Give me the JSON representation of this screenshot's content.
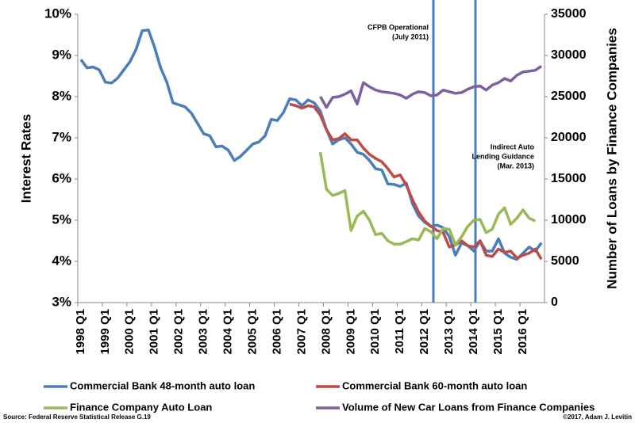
{
  "chart_data": {
    "type": "line",
    "y_label": "Interest Rates",
    "y2_label": "Number of Loans by Finance Companies",
    "categories": [
      "1998 Q1",
      null,
      null,
      null,
      "1999 Q1",
      null,
      null,
      null,
      "2000 Q1",
      null,
      null,
      null,
      "2001 Q1",
      null,
      null,
      null,
      "2002 Q1",
      null,
      null,
      null,
      "2003 Q1",
      null,
      null,
      null,
      "2004 Q1",
      null,
      null,
      null,
      "2005 Q1",
      null,
      null,
      null,
      "2006 Q1",
      null,
      null,
      null,
      "2007 Q1",
      null,
      null,
      null,
      "2008 Q1",
      null,
      null,
      null,
      "2009 Q1",
      null,
      null,
      null,
      "2010 Q1",
      null,
      null,
      null,
      "2011 Q1",
      null,
      null,
      null,
      "2012 Q1",
      null,
      null,
      null,
      "2013 Q1",
      null,
      null,
      null,
      "2014 Q1",
      null,
      null,
      null,
      "2015 Q1",
      null,
      null,
      null,
      "2016 Q1",
      null,
      null,
      null
    ],
    "series": [
      {
        "name": "Commercial Bank 48-month auto loan",
        "color": "#4a7ebb",
        "values": [
          8.9,
          8.7,
          8.72,
          8.65,
          8.35,
          8.33,
          8.45,
          8.65,
          8.85,
          9.15,
          9.6,
          9.62,
          9.2,
          8.7,
          8.35,
          7.85,
          7.8,
          7.75,
          7.6,
          7.35,
          7.1,
          7.05,
          6.78,
          6.8,
          6.7,
          6.45,
          6.55,
          6.7,
          6.85,
          6.9,
          7.05,
          7.45,
          7.42,
          7.62,
          7.95,
          7.92,
          7.78,
          7.92,
          7.85,
          7.65,
          7.2,
          6.85,
          6.95,
          7.0,
          6.85,
          6.65,
          6.6,
          6.45,
          6.25,
          6.22,
          5.88,
          5.87,
          5.82,
          5.9,
          5.4,
          5.1,
          4.95,
          4.85,
          4.88,
          4.82,
          4.6,
          4.15,
          4.45,
          4.38,
          4.25,
          4.5,
          4.25,
          4.25,
          4.55,
          4.2,
          4.1,
          4.05,
          4.2,
          4.35,
          4.25,
          4.45
        ]
      },
      {
        "name": "Commercial Bank 60-month auto loan",
        "color": "#be4b48",
        "values": [
          null,
          null,
          null,
          null,
          null,
          null,
          null,
          null,
          null,
          null,
          null,
          null,
          null,
          null,
          null,
          null,
          null,
          null,
          null,
          null,
          null,
          null,
          null,
          null,
          null,
          null,
          null,
          null,
          null,
          null,
          null,
          null,
          null,
          null,
          7.82,
          7.78,
          7.72,
          7.78,
          7.75,
          7.55,
          7.2,
          6.95,
          6.98,
          7.1,
          6.95,
          6.95,
          6.75,
          6.6,
          6.5,
          6.42,
          6.25,
          6.05,
          6.1,
          5.85,
          5.5,
          5.2,
          4.98,
          4.85,
          4.75,
          4.7,
          4.35,
          4.4,
          4.5,
          4.38,
          4.35,
          4.5,
          4.15,
          4.12,
          4.3,
          4.22,
          4.25,
          4.08,
          4.15,
          4.2,
          4.3,
          4.05
        ]
      },
      {
        "name": "Finance Company Auto Loan",
        "color": "#98b954",
        "values": [
          null,
          null,
          null,
          null,
          null,
          null,
          null,
          null,
          null,
          null,
          null,
          null,
          null,
          null,
          null,
          null,
          null,
          null,
          null,
          null,
          null,
          null,
          null,
          null,
          null,
          null,
          null,
          null,
          null,
          null,
          null,
          null,
          null,
          null,
          null,
          null,
          null,
          null,
          null,
          6.65,
          5.75,
          5.6,
          5.65,
          5.72,
          4.75,
          5.1,
          5.22,
          5.0,
          4.65,
          4.68,
          4.5,
          4.42,
          4.42,
          4.48,
          4.55,
          4.52,
          4.8,
          4.72,
          4.55,
          4.8,
          4.78,
          4.4,
          4.6,
          4.85,
          5.0,
          5.02,
          4.7,
          4.78,
          5.15,
          5.3,
          4.9,
          5.05,
          5.25,
          5.05,
          4.98,
          null
        ]
      },
      {
        "name": "Volume of New Car Loans from Finance Companies",
        "color": "#7d60a0",
        "axis": "y2",
        "values": [
          null,
          null,
          null,
          null,
          null,
          null,
          null,
          null,
          null,
          null,
          null,
          null,
          null,
          null,
          null,
          null,
          null,
          null,
          null,
          null,
          null,
          null,
          null,
          null,
          null,
          null,
          null,
          null,
          null,
          null,
          null,
          null,
          null,
          null,
          null,
          null,
          null,
          null,
          null,
          25000,
          23700,
          24900,
          25000,
          25300,
          25700,
          24100,
          26700,
          26200,
          25800,
          25600,
          25500,
          25400,
          25200,
          24800,
          25300,
          25600,
          25500,
          25100,
          25200,
          25800,
          25600,
          25400,
          25500,
          25900,
          26200,
          26300,
          25800,
          26400,
          26700,
          27200,
          26900,
          27600,
          28000,
          28100,
          28200,
          28700
        ]
      }
    ],
    "ylim": [
      3,
      10
    ],
    "yticks": [
      {
        "value": 3,
        "label": "3%"
      },
      {
        "value": 4,
        "label": "4%"
      },
      {
        "value": 5,
        "label": "5%"
      },
      {
        "value": 6,
        "label": "6%"
      },
      {
        "value": 7,
        "label": "7%"
      },
      {
        "value": 8,
        "label": "8%"
      },
      {
        "value": 9,
        "label": "9%"
      },
      {
        "value": 10,
        "label": "10%"
      }
    ],
    "y2lim": [
      0,
      35000
    ],
    "y2ticks": [
      0,
      5000,
      10000,
      15000,
      20000,
      25000,
      30000,
      35000
    ],
    "annotations": [
      [
        "CFPB Operational",
        "(July 2011)"
      ],
      [
        "Indirect Auto",
        "Lending Guidance",
        "(Mar. 2013)"
      ]
    ],
    "source": "Source: Federal Reserve Statistical Release G.19",
    "credit": "©2017, Adam J. Levitin"
  }
}
